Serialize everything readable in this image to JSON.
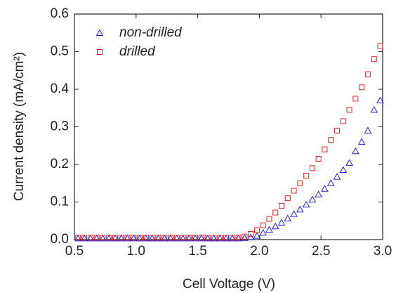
{
  "chart_data": {
    "type": "scatter",
    "x_label": "Cell Voltage (V)",
    "y_label": "Current density (mA/cm²)",
    "x": [
      0.53,
      0.58,
      0.63,
      0.68,
      0.73,
      0.78,
      0.83,
      0.88,
      0.93,
      0.98,
      1.03,
      1.08,
      1.13,
      1.18,
      1.23,
      1.28,
      1.33,
      1.38,
      1.43,
      1.48,
      1.53,
      1.58,
      1.63,
      1.68,
      1.73,
      1.78,
      1.83,
      1.88,
      1.93,
      1.98,
      2.03,
      2.08,
      2.13,
      2.18,
      2.23,
      2.28,
      2.33,
      2.38,
      2.43,
      2.48,
      2.53,
      2.58,
      2.63,
      2.68,
      2.73,
      2.78,
      2.83,
      2.88,
      2.93,
      2.98
    ],
    "series": [
      {
        "name": "non-drilled",
        "color": "#2020e0",
        "marker": "triangle",
        "values": [
          0.003,
          0.003,
          0.003,
          0.003,
          0.003,
          0.003,
          0.003,
          0.003,
          0.003,
          0.003,
          0.003,
          0.003,
          0.003,
          0.003,
          0.003,
          0.003,
          0.003,
          0.003,
          0.003,
          0.003,
          0.003,
          0.003,
          0.003,
          0.003,
          0.003,
          0.003,
          0.003,
          0.004,
          0.006,
          0.01,
          0.018,
          0.026,
          0.035,
          0.045,
          0.056,
          0.068,
          0.08,
          0.093,
          0.106,
          0.12,
          0.135,
          0.15,
          0.167,
          0.185,
          0.204,
          0.235,
          0.26,
          0.29,
          0.345,
          0.37
        ]
      },
      {
        "name": "drilled",
        "color": "#e02020",
        "marker": "square",
        "values": [
          0.005,
          0.005,
          0.005,
          0.005,
          0.005,
          0.005,
          0.005,
          0.005,
          0.005,
          0.005,
          0.005,
          0.005,
          0.005,
          0.005,
          0.005,
          0.005,
          0.005,
          0.005,
          0.005,
          0.005,
          0.005,
          0.005,
          0.005,
          0.005,
          0.005,
          0.005,
          0.005,
          0.008,
          0.015,
          0.025,
          0.038,
          0.055,
          0.072,
          0.09,
          0.11,
          0.13,
          0.15,
          0.17,
          0.19,
          0.215,
          0.24,
          0.265,
          0.29,
          0.315,
          0.345,
          0.375,
          0.405,
          0.44,
          0.48,
          0.515
        ]
      }
    ],
    "xlim": [
      0.5,
      3.0
    ],
    "xticks": [
      0.5,
      {
        "value": 1.0,
        "label": "1.0"
      },
      1.5,
      {
        "value": 2.0,
        "label": "2.0"
      },
      2.5,
      {
        "value": 3.0,
        "label": "3.0"
      }
    ],
    "ylim": [
      0,
      0.6
    ],
    "yticks": [
      {
        "value": 0,
        "label": "0.0"
      },
      0.1,
      0.2,
      0.3,
      0.4,
      0.5,
      0.6
    ],
    "legend": "upper left",
    "legend_italic": true
  }
}
